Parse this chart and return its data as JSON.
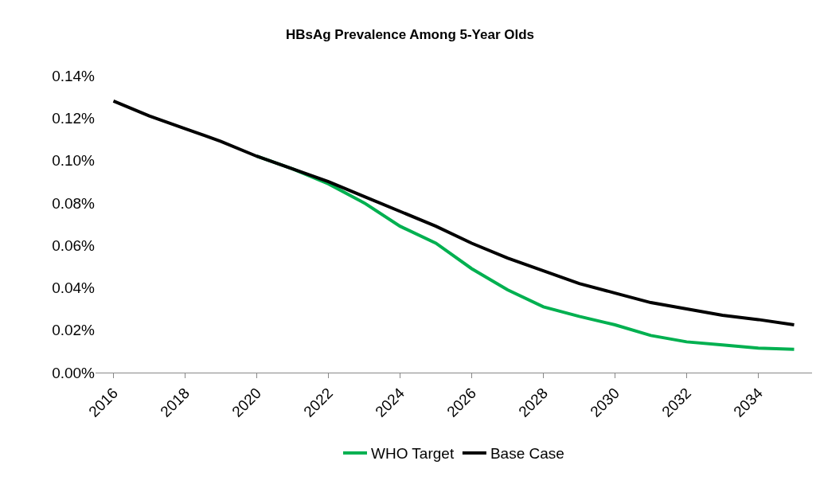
{
  "chart_data": {
    "type": "line",
    "title": "HBsAg Prevalence Among 5-Year Olds",
    "categories": [
      "2016",
      null,
      "2018",
      null,
      "2020",
      null,
      "2022",
      null,
      "2024",
      null,
      "2026",
      null,
      "2028",
      null,
      "2030",
      null,
      "2032",
      null,
      "2034",
      null
    ],
    "series": [
      {
        "name": "WHO Target",
        "color": "#00b050",
        "values": [
          null,
          null,
          null,
          null,
          0.102,
          0.096,
          0.089,
          0.08,
          0.069,
          0.061,
          0.049,
          0.039,
          0.031,
          0.0265,
          0.0225,
          0.0175,
          0.0145,
          0.013,
          0.0115,
          0.011
        ]
      },
      {
        "name": "Base Case",
        "color": "#000000",
        "values": [
          0.128,
          0.121,
          0.115,
          0.109,
          0.102,
          0.096,
          0.09,
          0.083,
          0.076,
          0.069,
          0.061,
          0.054,
          0.048,
          0.042,
          0.0375,
          0.033,
          0.03,
          0.027,
          0.025,
          0.0225
        ]
      }
    ],
    "ylim": [
      0,
      0.14
    ],
    "yticks": [
      {
        "value": 0,
        "label": "0.00%"
      },
      {
        "value": 0.02,
        "label": "0.02%"
      },
      {
        "value": 0.04,
        "label": "0.04%"
      },
      {
        "value": 0.06,
        "label": "0.06%"
      },
      {
        "value": 0.08,
        "label": "0.08%"
      },
      {
        "value": 0.1,
        "label": "0.10%"
      },
      {
        "value": 0.12,
        "label": "0.12%"
      },
      {
        "value": 0.14,
        "label": "0.14%"
      }
    ],
    "legend": "bottom",
    "marker": "none",
    "line_style": "solid"
  }
}
